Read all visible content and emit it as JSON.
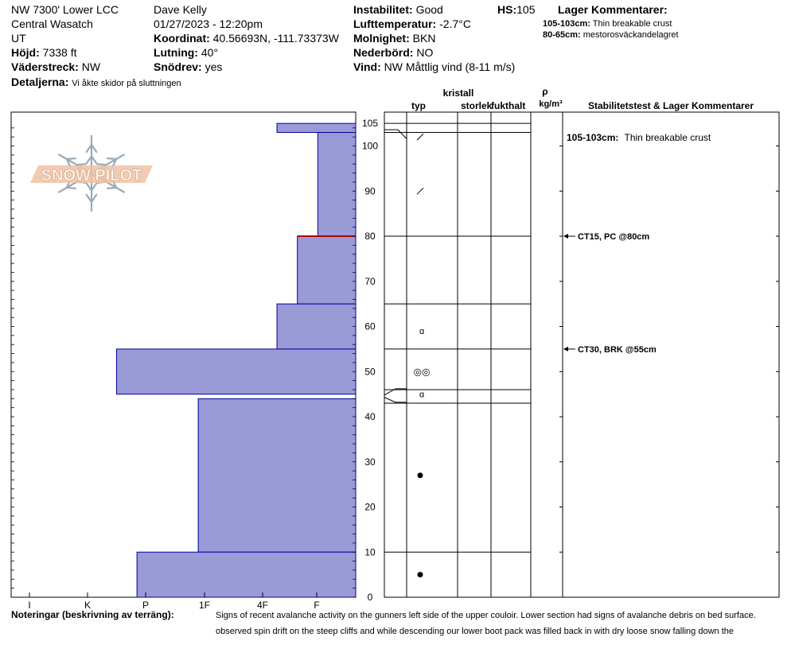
{
  "header": {
    "location": "NW 7300' Lower LCC",
    "range": "Central Wasatch",
    "state": "UT",
    "elevation_label": "Höjd:",
    "elevation_value": "7338 ft",
    "aspect_label": "Väderstreck:",
    "aspect_value": "NW",
    "details_label": "Detaljerna:",
    "details_value": "Vi åkte skidor på sluttningen",
    "observer": "Dave Kelly",
    "datetime": "01/27/2023 - 12:20pm",
    "coord_label": "Koordinat:",
    "coord_value": "40.56693N, -111.73373W",
    "slope_label": "Lutning:",
    "slope_value": "40°",
    "drift_label": "Snödrev:",
    "drift_value": "yes",
    "stability_label": "Instabilitet:",
    "stability_value": "Good",
    "airtemp_label": "Lufttemperatur:",
    "airtemp_value": "-2.7°C",
    "sky_label": "Molnighet:",
    "sky_value": "BKN",
    "precip_label": "Nederbörd:",
    "precip_value": "NO",
    "wind_label": "Vind:",
    "wind_value": "NW Måttlig vind (8-11 m/s)",
    "hs_label": "HS:",
    "hs_value": "105",
    "layer_comments_title": "Lager Kommentarer:",
    "layer_comments": [
      {
        "range": "105-103cm:",
        "text": "Thin breakable crust"
      },
      {
        "range": "80-65cm:",
        "text": "mestorosväckandelagret"
      }
    ]
  },
  "logo_text": "SNOW PILOT",
  "columns": {
    "crystal": "kristall",
    "type": "typ",
    "size": "storlek",
    "moisture": "fukthalt",
    "rho": "ρ",
    "density_unit": "kg/m³",
    "stability": "Stabilitetstest & Lager Kommentarer"
  },
  "hardness_labels": [
    "I",
    "K",
    "P",
    "1F",
    "4F",
    "F"
  ],
  "depth_ticks": [
    "0",
    "10",
    "20",
    "30",
    "40",
    "50",
    "60",
    "70",
    "80",
    "90",
    "100",
    "105"
  ],
  "chart_data": {
    "type": "bar",
    "y_unit": "cm",
    "ylim": [
      0,
      105
    ],
    "hardness_scale": [
      "F",
      "4F",
      "1F",
      "P",
      "K",
      "I"
    ],
    "layers": [
      {
        "top": 105,
        "bottom": 103,
        "hardness_index": 1.35
      },
      {
        "top": 103,
        "bottom": 80,
        "hardness_index": 0.65
      },
      {
        "top": 80,
        "bottom": 65,
        "hardness_index": 1.0
      },
      {
        "top": 65,
        "bottom": 55,
        "hardness_index": 1.35
      },
      {
        "top": 55,
        "bottom": 45,
        "hardness_index": 4.1
      },
      {
        "top": 44,
        "bottom": 10,
        "hardness_index": 2.7
      },
      {
        "top": 10,
        "bottom": 0,
        "hardness_index": 3.75
      }
    ],
    "layer_boundaries": [
      105,
      103,
      80,
      65,
      55,
      46,
      43,
      10
    ],
    "crystal_marks": [
      {
        "depth": 102,
        "symbol": "/"
      },
      {
        "depth": 90,
        "symbol": "/"
      },
      {
        "depth": 59,
        "symbol": "ɑ"
      },
      {
        "depth": 50,
        "symbol": "◎◎"
      },
      {
        "depth": 45,
        "symbol": "ɑ"
      },
      {
        "depth": 27,
        "symbol": "●"
      },
      {
        "depth": 5,
        "symbol": "●"
      }
    ],
    "stability_tests": [
      {
        "depth": 80,
        "label": "CT15, PC @80cm"
      },
      {
        "depth": 55,
        "label": "CT30, BRK @55cm"
      }
    ],
    "comment_in_chart": {
      "depth": 102,
      "range": "105-103cm:",
      "text": "Thin breakable crust"
    },
    "colors": {
      "fill": "#9a9ad6",
      "edge": "#0000a0",
      "weak": "#b00000"
    }
  },
  "notes": {
    "label": "Noteringar (beskrivning av terräng):",
    "line1": "Signs of recent avalanche activity on the gunners left side of the upper couloir.  Lower section had signs of avalanche debris on bed surface.",
    "line2": "observed spin drift on the steep cliffs and while descending our lower boot pack was filled back in with dry loose snow falling down the"
  }
}
